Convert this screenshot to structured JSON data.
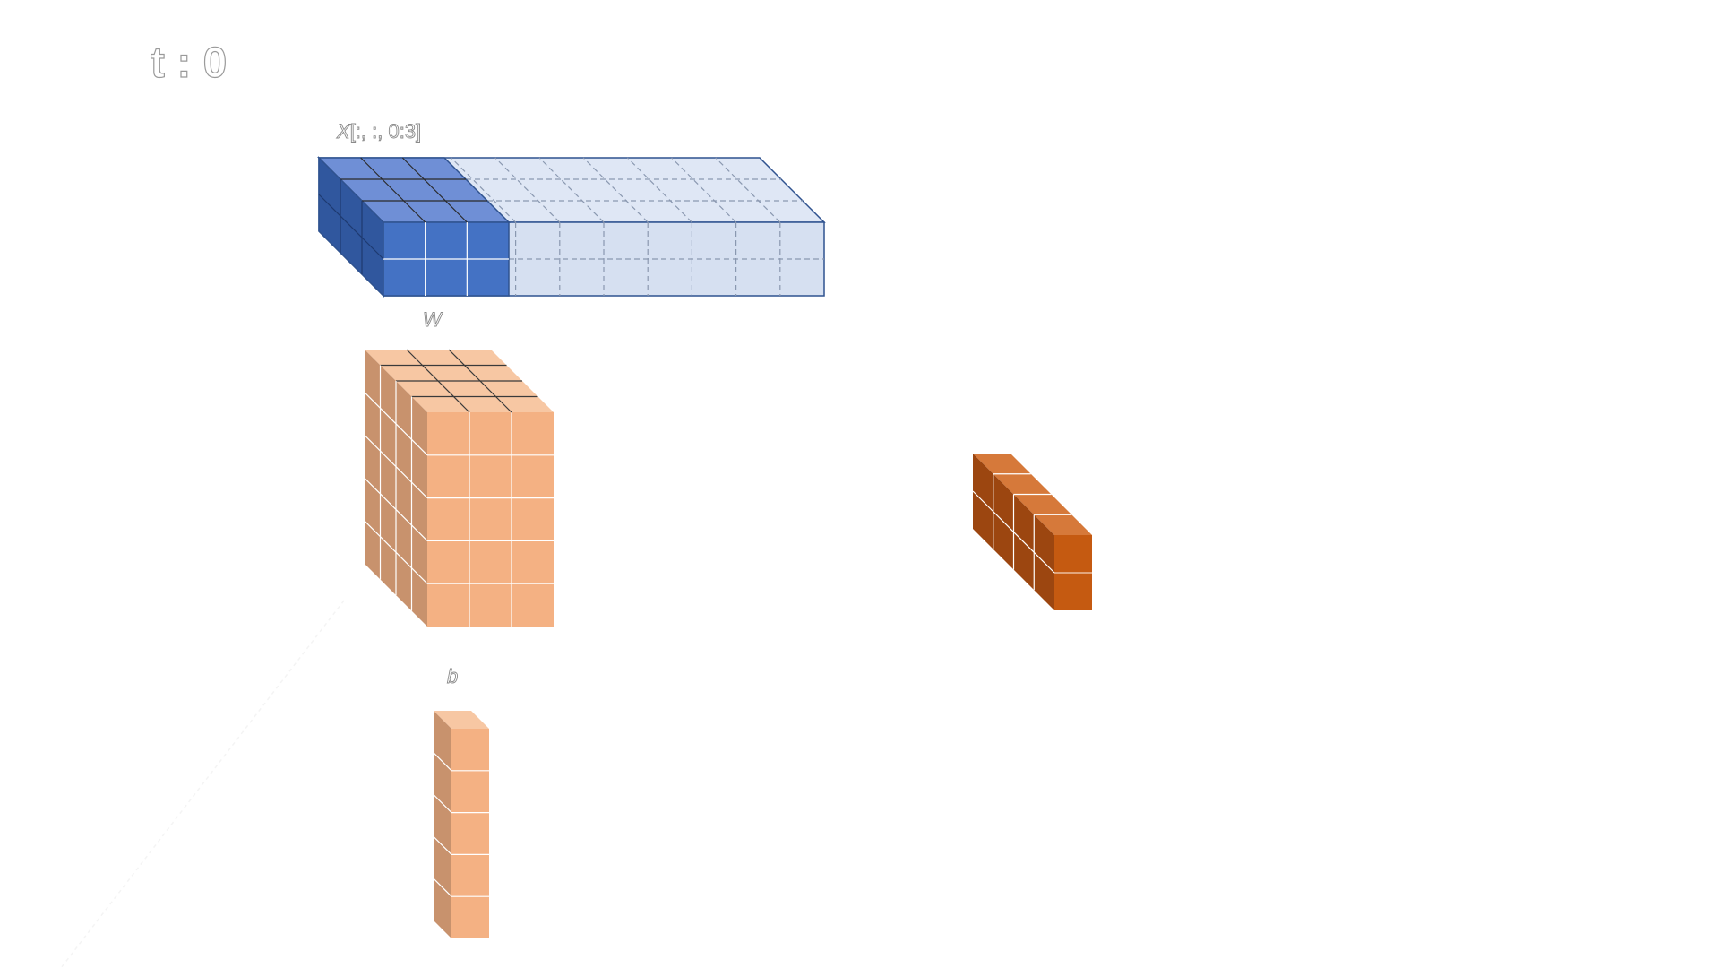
{
  "time_label": "t : 0",
  "x_label": {
    "name": "X",
    "suffix": "[:, :, 0:3]"
  },
  "w_label": "W",
  "b_label": "b",
  "blocks": {
    "x_slice": {
      "cols": 3,
      "rows": 2,
      "depth": 3,
      "highlighted": true
    },
    "x_rest": {
      "cols": 7,
      "rows": 2,
      "depth": 3,
      "highlighted": false
    },
    "weights": {
      "cols": 3,
      "rows": 5,
      "depth": 4
    },
    "bias": {
      "cols": 1,
      "rows": 5,
      "depth": 1
    },
    "output": {
      "cols": 1,
      "rows": 2,
      "depth": 4
    }
  },
  "colors": {
    "x_front": "#4472c4",
    "x_top": "#6f8fd6",
    "x_side": "#30579e",
    "x_light_front": "#d6e0f1",
    "x_light_top": "#dfe7f5",
    "x_edge": "#2f528f",
    "x_dash": "#8a98b0",
    "w_front": "#f4b183",
    "w_top": "#f7c7a3",
    "w_side": "#c8926d",
    "o_front": "#c55a11",
    "o_top": "#d6793a",
    "o_side": "#9c4610",
    "grid": "#ffffff",
    "dark_line": "#3a3a3a"
  }
}
